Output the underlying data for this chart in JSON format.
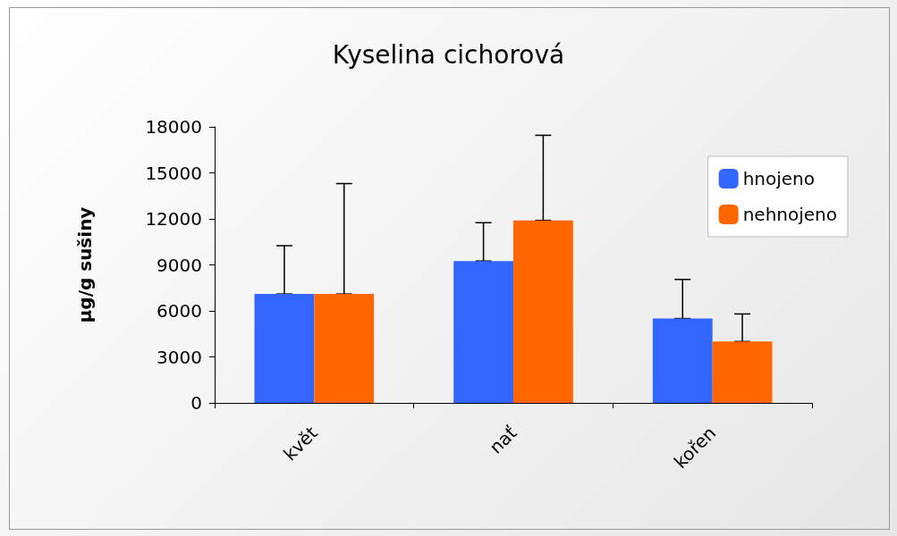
{
  "chart_data": {
    "type": "bar",
    "title": "Kyselina cichorová",
    "ylabel": "µg/g sušiny",
    "categories": [
      "květ",
      "nať",
      "kořen"
    ],
    "series": [
      {
        "name": "hnojeno",
        "color": "#3366ff",
        "values": [
          7100,
          9250,
          5500
        ],
        "errors": [
          [
            7100,
            10250
          ],
          [
            9250,
            11750
          ],
          [
            5500,
            8050
          ]
        ]
      },
      {
        "name": "nehnojeno",
        "color": "#ff6600",
        "values": [
          7100,
          11900,
          4000
        ],
        "errors": [
          [
            7100,
            14300
          ],
          [
            11900,
            17450
          ],
          [
            4000,
            5800
          ]
        ]
      }
    ],
    "ylim": [
      0,
      18000
    ],
    "yticks": [
      0,
      3000,
      6000,
      9000,
      12000,
      15000,
      18000
    ],
    "grid": false,
    "legend": "right"
  }
}
